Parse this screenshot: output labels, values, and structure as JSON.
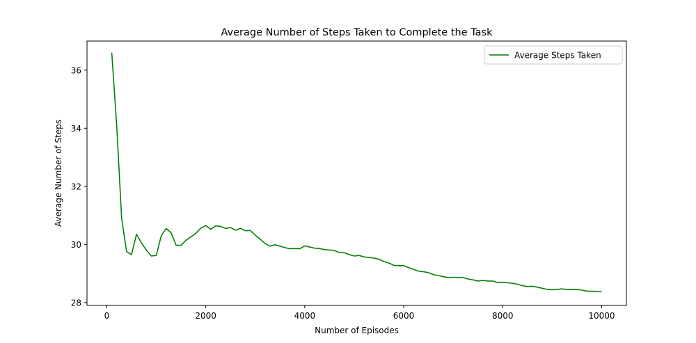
{
  "chart_data": {
    "type": "line",
    "title": "Average Number of Steps Taken to Complete the Task",
    "xlabel": "Number of Episodes",
    "ylabel": "Average Number of Steps",
    "xlim": [
      -400,
      10500
    ],
    "ylim": [
      27.9,
      37.0
    ],
    "xticks": [
      0,
      2000,
      4000,
      6000,
      8000,
      10000
    ],
    "yticks": [
      28,
      30,
      32,
      34,
      36
    ],
    "grid": false,
    "legend_position": "top-right",
    "series": [
      {
        "name": "Average Steps Taken",
        "color": "#008000",
        "x": [
          100,
          200,
          300,
          400,
          500,
          600,
          700,
          800,
          900,
          1000,
          1100,
          1200,
          1300,
          1400,
          1500,
          1600,
          1700,
          1800,
          1900,
          2000,
          2100,
          2200,
          2300,
          2400,
          2500,
          2600,
          2700,
          2800,
          2900,
          3000,
          3100,
          3200,
          3300,
          3400,
          3500,
          3600,
          3700,
          3800,
          3900,
          4000,
          4100,
          4200,
          4300,
          4400,
          4500,
          4600,
          4700,
          4800,
          4900,
          5000,
          5100,
          5200,
          5300,
          5400,
          5500,
          5600,
          5700,
          5800,
          5900,
          6000,
          6100,
          6200,
          6300,
          6400,
          6500,
          6600,
          6700,
          6800,
          6900,
          7000,
          7100,
          7200,
          7300,
          7400,
          7500,
          7600,
          7700,
          7800,
          7900,
          8000,
          8100,
          8200,
          8300,
          8400,
          8500,
          8600,
          8700,
          8800,
          8900,
          9000,
          9100,
          9200,
          9300,
          9400,
          9500,
          9600,
          9700,
          9800,
          9900,
          10000
        ],
        "y": [
          36.6,
          34.1,
          30.9,
          29.75,
          29.65,
          30.35,
          30.05,
          29.8,
          29.6,
          29.62,
          30.3,
          30.55,
          30.4,
          29.97,
          29.97,
          30.14,
          30.26,
          30.38,
          30.56,
          30.65,
          30.52,
          30.64,
          30.62,
          30.55,
          30.58,
          30.49,
          30.55,
          30.47,
          30.48,
          30.32,
          30.18,
          30.03,
          29.94,
          29.99,
          29.94,
          29.89,
          29.85,
          29.86,
          29.85,
          29.95,
          29.91,
          29.87,
          29.86,
          29.82,
          29.81,
          29.79,
          29.72,
          29.71,
          29.65,
          29.6,
          29.62,
          29.57,
          29.55,
          29.53,
          29.49,
          29.41,
          29.36,
          29.28,
          29.27,
          29.27,
          29.2,
          29.14,
          29.08,
          29.06,
          29.03,
          28.96,
          28.93,
          28.89,
          28.86,
          28.87,
          28.86,
          28.86,
          28.81,
          28.78,
          28.74,
          28.76,
          28.74,
          28.74,
          28.68,
          28.7,
          28.68,
          28.66,
          28.63,
          28.58,
          28.55,
          28.56,
          28.53,
          28.49,
          28.45,
          28.44,
          28.45,
          28.47,
          28.45,
          28.45,
          28.45,
          28.43,
          28.39,
          28.39,
          28.38,
          28.37
        ]
      }
    ]
  }
}
